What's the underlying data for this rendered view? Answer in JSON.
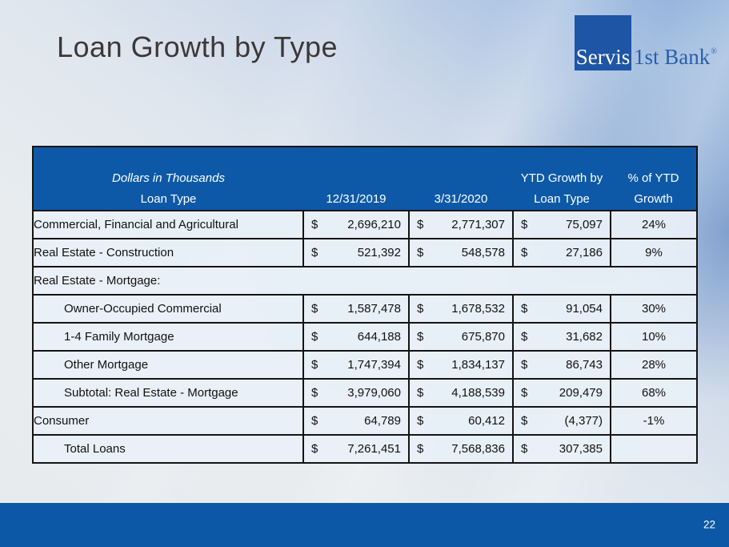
{
  "slide": {
    "title": "Loan Growth by Type",
    "page_number": "22"
  },
  "logo": {
    "part1": "Servis",
    "part2": "1st Bank",
    "registered": "®"
  },
  "colors": {
    "header_blue": "#0d59a8",
    "bottom_bar_blue": "#0d58a6",
    "logo_blue": "#1e55a4",
    "row_background": "#e8f0f8",
    "border_black": "#141414",
    "title_gray": "#3c3836"
  },
  "table": {
    "currency": "$",
    "headers": {
      "subtitle": "Dollars in Thousands",
      "loan_type": "Loan Type",
      "date1": "12/31/2019",
      "date2": "3/31/2020",
      "ytd1": "YTD Growth by",
      "ytd2": "Loan Type",
      "pct1": "% of YTD",
      "pct2": "Growth"
    },
    "rows": [
      {
        "label": "Commercial, Financial and Agricultural",
        "v2019": "2,696,210",
        "v2020": "2,771,307",
        "growth": "75,097",
        "pct": "24%"
      },
      {
        "label": "Real Estate - Construction",
        "v2019": "521,392",
        "v2020": "548,578",
        "growth": "27,186",
        "pct": "9%"
      },
      {
        "label": "Real Estate - Mortgage:",
        "spanner": true
      },
      {
        "label": "Owner-Occupied Commercial",
        "v2019": "1,587,478",
        "v2020": "1,678,532",
        "growth": "91,054",
        "pct": "30%"
      },
      {
        "label": "1-4 Family Mortgage",
        "v2019": "644,188",
        "v2020": "675,870",
        "growth": "31,682",
        "pct": "10%"
      },
      {
        "label": "Other Mortgage",
        "v2019": "1,747,394",
        "v2020": "1,834,137",
        "growth": "86,743",
        "pct": "28%"
      },
      {
        "label": "Subtotal: Real Estate - Mortgage",
        "v2019": "3,979,060",
        "v2020": "4,188,539",
        "growth": "209,479",
        "pct": "68%"
      },
      {
        "label": "Consumer",
        "v2019": "64,789",
        "v2020": "60,412",
        "growth": "(4,377)",
        "pct": "-1%"
      },
      {
        "label": "Total Loans",
        "v2019": "7,261,451",
        "v2020": "7,568,836",
        "growth": "307,385",
        "pct": ""
      }
    ]
  }
}
